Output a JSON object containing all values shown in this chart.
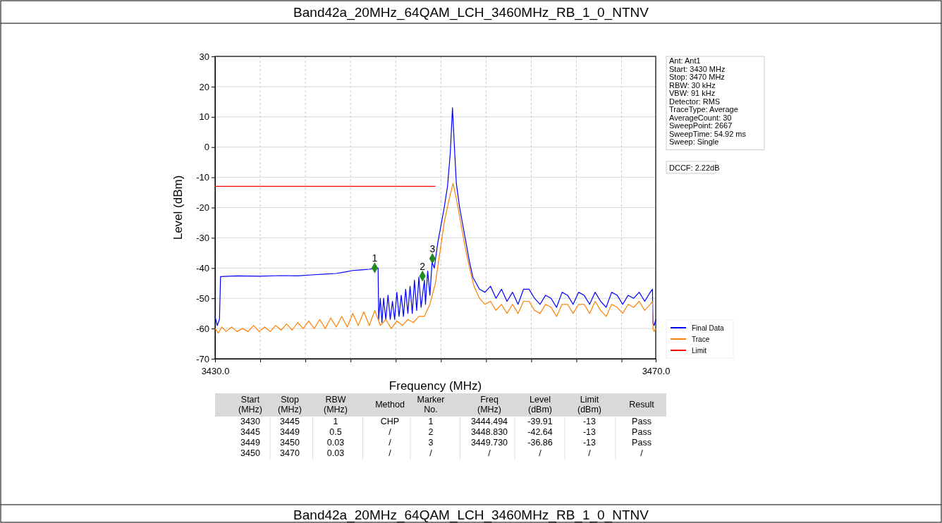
{
  "chart_data": [
    {
      "type": "line",
      "title": "Band42a_20MHz_64QAM_LCH_3460MHz_RB_1_0_NTNV",
      "xlabel": "Frequency (MHz)",
      "ylabel": "Level (dBm)",
      "xlim": [
        3430,
        3470
      ],
      "xticks": [
        {
          "value": 3430,
          "label": "3430.0"
        },
        {
          "value": 3434.1,
          "label": null
        },
        {
          "value": 3438.2,
          "label": null
        },
        {
          "value": 3442.3,
          "label": null
        },
        {
          "value": 3446.4,
          "label": null
        },
        {
          "value": 3450.5,
          "label": null
        },
        {
          "value": 3454.6,
          "label": null
        },
        {
          "value": 3458.7,
          "label": null
        },
        {
          "value": 3462.8,
          "label": null
        },
        {
          "value": 3466.9,
          "label": null
        },
        {
          "value": 3470,
          "label": "3470.0"
        }
      ],
      "ylim": [
        -70,
        30
      ],
      "yticks": [
        -70,
        -60,
        -50,
        -40,
        -30,
        -20,
        -10,
        0,
        10,
        20,
        30
      ],
      "grid": true,
      "legend": "bottom right",
      "line_style": "solid",
      "series": [
        {
          "name": "Final Data",
          "color": "#0000ff",
          "x": [
            3430,
            3430.2,
            3430.4,
            3430.5,
            3432,
            3434,
            3436,
            3437.5,
            3439,
            3440,
            3441,
            3441.8,
            3442.5,
            3443.3,
            3444,
            3444.8,
            3444.85,
            3445,
            3445.15,
            3445.3,
            3445.5,
            3445.7,
            3445.9,
            3446.1,
            3446.3,
            3446.5,
            3446.7,
            3446.9,
            3447.1,
            3447.3,
            3447.5,
            3447.7,
            3447.9,
            3448.1,
            3448.3,
            3448.5,
            3448.7,
            3449.0,
            3449.1,
            3449.3,
            3449.5,
            3449.7,
            3449.9,
            3450.2,
            3450.5,
            3450.8,
            3451.1,
            3451.35,
            3451.55,
            3451.7,
            3451.9,
            3452.2,
            3452.5,
            3452.8,
            3453.1,
            3453.4,
            3453.7,
            3454,
            3454.5,
            3455,
            3455.5,
            3456,
            3456.5,
            3457,
            3457.5,
            3458,
            3458.5,
            3459,
            3459.5,
            3460,
            3460.5,
            3461,
            3461.5,
            3462,
            3462.5,
            3463,
            3463.5,
            3464,
            3464.5,
            3465,
            3465.5,
            3466,
            3466.5,
            3467,
            3467.5,
            3468,
            3468.5,
            3469,
            3469.5,
            3469.7,
            3469.75,
            3469.85,
            3470
          ],
          "values": [
            -56,
            -59,
            -57,
            -42.8,
            -42.6,
            -42.7,
            -42.5,
            -42.6,
            -42.2,
            -42,
            -41.8,
            -41.3,
            -40.8,
            -40.6,
            -40.4,
            -40,
            -57,
            -50,
            -58,
            -50,
            -57,
            -49,
            -57,
            -51,
            -57,
            -48,
            -56,
            -49,
            -56,
            -47,
            -55,
            -46,
            -55,
            -44,
            -54,
            -43,
            -53,
            -44,
            -52,
            -41,
            -49,
            -38,
            -40,
            -32,
            -26,
            -20,
            -13,
            -2,
            13,
            2,
            -12,
            -20,
            -26,
            -32,
            -38,
            -43,
            -45,
            -47,
            -48,
            -46,
            -50,
            -47,
            -51,
            -48,
            -52,
            -47,
            -47,
            -50,
            -52,
            -49,
            -50,
            -53,
            -48,
            -49,
            -52,
            -48,
            -49,
            -52,
            -48,
            -51,
            -53,
            -48,
            -49,
            -52,
            -49,
            -50,
            -48,
            -51,
            -48,
            -47,
            -58,
            -59,
            -57
          ]
        },
        {
          "name": "Trace",
          "color": "#ff8000",
          "x": [
            3430,
            3430.3,
            3430.6,
            3431,
            3431.5,
            3432,
            3432.5,
            3433,
            3433.5,
            3434,
            3434.5,
            3435,
            3435.5,
            3436,
            3436.5,
            3437,
            3437.5,
            3438,
            3438.5,
            3439,
            3439.5,
            3440,
            3440.5,
            3441,
            3441.5,
            3442,
            3442.5,
            3443,
            3443.5,
            3444,
            3444.5,
            3445,
            3445.5,
            3446,
            3446.5,
            3447,
            3447.5,
            3448,
            3448.5,
            3449,
            3449.5,
            3450,
            3450.4,
            3450.8,
            3451.2,
            3451.6,
            3451.9,
            3452.3,
            3452.7,
            3453.1,
            3453.5,
            3454,
            3454.5,
            3455,
            3455.5,
            3456,
            3456.5,
            3457,
            3457.5,
            3458,
            3458.5,
            3459,
            3459.5,
            3460,
            3460.5,
            3461,
            3461.5,
            3462,
            3462.5,
            3463,
            3463.5,
            3464,
            3464.5,
            3465,
            3465.5,
            3466,
            3466.5,
            3467,
            3467.5,
            3468,
            3468.5,
            3469,
            3469.5,
            3469.7,
            3469.75,
            3469.85,
            3470
          ],
          "values": [
            -60,
            -61.5,
            -59.5,
            -61,
            -59.5,
            -61,
            -60,
            -61,
            -59,
            -61,
            -59.5,
            -61,
            -59,
            -60.5,
            -58.5,
            -60.5,
            -58,
            -60,
            -57.5,
            -60,
            -57,
            -60,
            -56.5,
            -59.5,
            -56,
            -59.5,
            -55,
            -59,
            -54.5,
            -59,
            -54,
            -59,
            -57,
            -60,
            -57.5,
            -59,
            -57,
            -58,
            -56,
            -56,
            -52,
            -45,
            -35,
            -25,
            -18,
            -12,
            -17,
            -25,
            -33,
            -40,
            -46,
            -50,
            -52,
            -51,
            -54,
            -52,
            -55,
            -52,
            -55,
            -51,
            -51,
            -54,
            -55,
            -52,
            -53,
            -56,
            -52,
            -52,
            -55,
            -52,
            -52,
            -55,
            -51,
            -54,
            -56,
            -52,
            -53,
            -55,
            -52,
            -53,
            -51,
            -54,
            -52,
            -51,
            -60,
            -61,
            -60
          ]
        },
        {
          "name": "Limit",
          "color": "#ff0000",
          "x": [
            3430,
            3450
          ],
          "values": [
            -13,
            -13
          ]
        },
        {
          "type": "scatter",
          "marker": "diamond",
          "color": "#228b22",
          "x": [
            3444.494,
            3448.83,
            3449.73
          ],
          "values": [
            -39.91,
            -42.64,
            -36.86
          ]
        }
      ],
      "annotations": [
        {
          "text": "1",
          "x": 3444.494,
          "y": -39.91
        },
        {
          "text": "2",
          "x": 3448.83,
          "y": -42.64
        },
        {
          "text": "3",
          "x": 3449.73,
          "y": -36.86
        },
        "Ant: Ant1",
        "Start: 3430 MHz",
        "Stop: 3470 MHz",
        "RBW: 30 kHz",
        "VBW: 91 kHz",
        "Detector: RMS",
        "TraceType: Average",
        "AverageCount: 30",
        "SweepPoint: 2667",
        "SweepTime: 54.92 ms",
        "Sweep: Single",
        "DCCF: 2.22dB"
      ]
    },
    {
      "type": "other",
      "title": "Band42a_20MHz_64QAM_LCH_3460MHz_RB_1_0_NTNV",
      "categories": [
        "Start (MHz)",
        "Stop (MHz)",
        "RBW (MHz)",
        "Method",
        "Marker No.",
        "Freq (MHz)",
        "Level (dBm)",
        "Limit (dBm)",
        "Result"
      ],
      "annotations": [
        "3430",
        "3445",
        "1",
        "CHP",
        "1",
        "3444.494",
        "-39.91",
        "-13",
        "Pass",
        "3445",
        "3449",
        "0.5",
        "/",
        "2",
        "3448.830",
        "-42.64",
        "-13",
        "Pass",
        "3449",
        "3450",
        "0.03",
        "/",
        "3",
        "3449.730",
        "-36.86",
        "-13",
        "Pass",
        "3450",
        "3470",
        "0.03",
        "/",
        "/",
        "/",
        "/",
        "/",
        "/"
      ]
    }
  ]
}
